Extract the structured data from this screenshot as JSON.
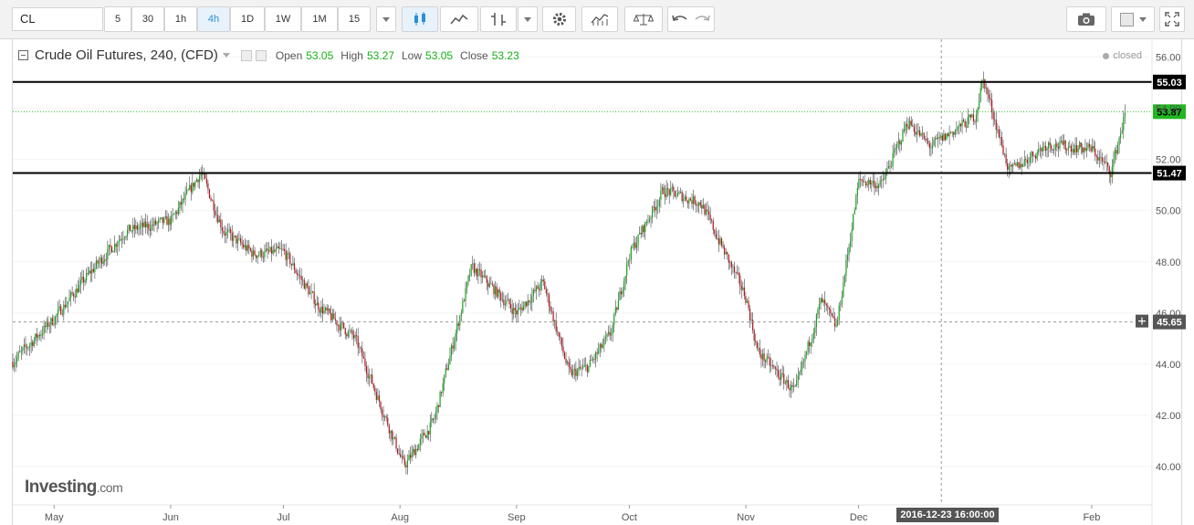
{
  "toolbar": {
    "symbol": "CL",
    "intervals": [
      "5",
      "30",
      "1h",
      "4h",
      "1D",
      "1W",
      "1M",
      "15"
    ],
    "active_interval": "4h"
  },
  "legend": {
    "title": "Crude Oil Futures, 240, (CFD)",
    "open_label": "Open",
    "open": "53.05",
    "high_label": "High",
    "high": "53.27",
    "low_label": "Low",
    "low": "53.05",
    "close_label": "Close",
    "close": "53.23",
    "status": "closed"
  },
  "logo": {
    "name": "Investing",
    "suffix": ".com"
  },
  "crosshair": {
    "date_label": "2016-12-23 16:00:00",
    "price_label": "45.65"
  },
  "colors": {
    "up": "#13a31a",
    "down": "#b4121b",
    "last_price": "#22b722",
    "support_lines": "#000000"
  },
  "chart_data": {
    "type": "line",
    "instrument": "Crude Oil Futures (CFD), 4h candles",
    "x": [
      "Apr 20",
      "May 1",
      "May 10",
      "May 20",
      "Jun 1",
      "Jun 9",
      "Jun 15",
      "Jun 23",
      "Jul 1",
      "Jul 10",
      "Jul 20",
      "Aug 2",
      "Aug 10",
      "Aug 20",
      "Sep 1",
      "Sep 8",
      "Sep 15",
      "Sep 20",
      "Sep 26",
      "Oct 1",
      "Oct 10",
      "Oct 20",
      "Nov 1",
      "Nov 4",
      "Nov 14",
      "Nov 21",
      "Nov 25",
      "Dec 1",
      "Dec 7",
      "Dec 14",
      "Dec 20",
      "Jan 1",
      "Jan 3",
      "Jan 10",
      "Jan 20",
      "Feb 1",
      "Feb 6",
      "Feb 10"
    ],
    "values": [
      44.1,
      45.8,
      47.5,
      49.2,
      49.6,
      51.5,
      49.2,
      48.3,
      48.4,
      46.3,
      45.0,
      40.0,
      41.8,
      47.8,
      46.0,
      47.2,
      43.6,
      43.9,
      45.2,
      48.3,
      50.8,
      50.3,
      46.6,
      44.5,
      42.9,
      46.5,
      45.4,
      51.2,
      51.0,
      53.5,
      52.5,
      53.7,
      55.2,
      51.5,
      52.6,
      52.4,
      51.5,
      53.9
    ],
    "horizontal_lines": [
      55.03,
      51.47,
      53.87,
      45.65
    ],
    "y_ticks": [
      "56.00",
      "54.00",
      "52.00",
      "50.00",
      "48.00",
      "46.00",
      "44.00",
      "42.00",
      "40.00"
    ],
    "x_ticks": [
      "May",
      "Jun",
      "Jul",
      "Aug",
      "Sep",
      "Oct",
      "Nov",
      "Dec",
      "Feb"
    ],
    "y_range": [
      38.5,
      56.7
    ]
  }
}
